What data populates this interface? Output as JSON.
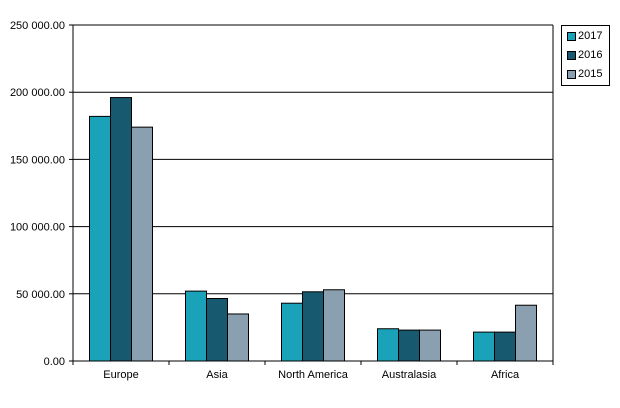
{
  "chart_data": {
    "type": "bar",
    "title": "",
    "xlabel": "",
    "ylabel": "",
    "ylim": [
      0,
      250000
    ],
    "yticks": [
      "0.00",
      "50 000.00",
      "100 000.00",
      "150 000.00",
      "200 000.00",
      "250 000.00"
    ],
    "ytick_values": [
      0,
      50000,
      100000,
      150000,
      200000,
      250000
    ],
    "grid": true,
    "legend_position": "top-right",
    "categories": [
      "Europe",
      "Asia",
      "North America",
      "Australasia",
      "Africa"
    ],
    "series": [
      {
        "name": "2017",
        "color": "#1aa3b8",
        "values": [
          182000,
          52000,
          43000,
          24000,
          21500
        ]
      },
      {
        "name": "2016",
        "color": "#17596e",
        "values": [
          196000,
          46500,
          51500,
          23000,
          21500
        ]
      },
      {
        "name": "2015",
        "color": "#8aa0b0",
        "values": [
          174000,
          35000,
          53000,
          23000,
          41500
        ]
      }
    ]
  }
}
